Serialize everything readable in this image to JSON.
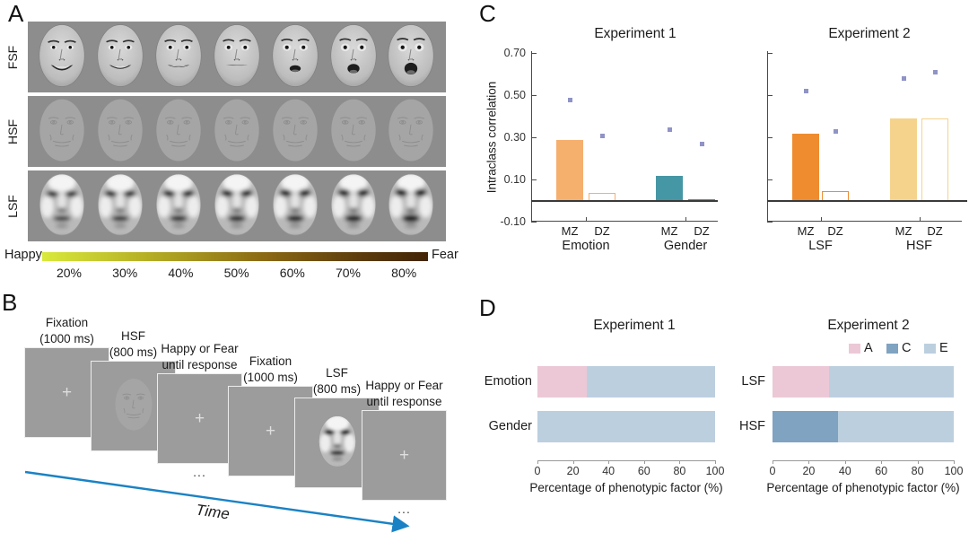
{
  "panelA": {
    "label": "A",
    "row_labels": [
      "FSF",
      "HSF",
      "LSF"
    ],
    "faces_per_row": 7,
    "colorbar": {
      "left_label": "Happy",
      "right_label": "Fear",
      "tick_labels": [
        "20%",
        "30%",
        "40%",
        "50%",
        "60%",
        "70%",
        "80%"
      ],
      "gradient_start": "#d9e93c",
      "gradient_end": "#422406"
    }
  },
  "panelB": {
    "label": "B",
    "time_label": "Time",
    "arrow_color": "#1a82c4",
    "ellipsis": "...",
    "frames": [
      {
        "label_line1": "Fixation",
        "label_line2": "(1000 ms)",
        "content": "fixation-cross",
        "ellipsis_below": false
      },
      {
        "label_line1": "HSF",
        "label_line2": "(800 ms)",
        "content": "hsf-face",
        "ellipsis_below": false
      },
      {
        "label_line1": "Happy or Fear",
        "label_line2": "until response",
        "content": "fixation-cross",
        "ellipsis_below": true
      },
      {
        "label_line1": "Fixation",
        "label_line2": "(1000 ms)",
        "content": "fixation-cross",
        "ellipsis_below": false
      },
      {
        "label_line1": "LSF",
        "label_line2": "(800 ms)",
        "content": "lsf-face",
        "ellipsis_below": false
      },
      {
        "label_line1": "Happy or Fear",
        "label_line2": "until response",
        "content": "fixation-cross",
        "ellipsis_below": true
      }
    ]
  },
  "chart_data": [
    {
      "panel_label": "C",
      "type": "bar",
      "ylabel": "Intraclass correlation",
      "ylim": [
        -0.1,
        0.72
      ],
      "ytick_labels": [
        "0.70",
        "0.50",
        "0.30",
        "0.10",
        "-0.10"
      ],
      "ytick_values": [
        0.7,
        0.5,
        0.3,
        0.1,
        -0.1
      ],
      "point_color": "#8f93c6",
      "charts": [
        {
          "title": "Experiment 1",
          "groups": [
            {
              "label": "Emotion",
              "color": "#f5b06e",
              "bars": [
                {
                  "x_label": "MZ",
                  "value": 0.29,
                  "style": "filled"
                },
                {
                  "x_label": "DZ",
                  "value": 0.04,
                  "style": "outline"
                }
              ],
              "points": [
                {
                  "x_label": "MZ",
                  "value": 0.48
                },
                {
                  "x_label": "DZ",
                  "value": 0.31
                }
              ]
            },
            {
              "label": "Gender",
              "color": "#4697a5",
              "bars": [
                {
                  "x_label": "MZ",
                  "value": 0.12,
                  "style": "filled"
                },
                {
                  "x_label": "DZ",
                  "value": 0.005,
                  "style": "filled"
                }
              ],
              "points": [
                {
                  "x_label": "MZ",
                  "value": 0.34
                },
                {
                  "x_label": "DZ",
                  "value": 0.27
                }
              ]
            }
          ]
        },
        {
          "title": "Experiment 2",
          "groups": [
            {
              "label": "LSF",
              "color": "#ef8c2f",
              "bars": [
                {
                  "x_label": "MZ",
                  "value": 0.32,
                  "style": "filled"
                },
                {
                  "x_label": "DZ",
                  "value": 0.045,
                  "style": "outline"
                }
              ],
              "points": [
                {
                  "x_label": "MZ",
                  "value": 0.52
                },
                {
                  "x_label": "DZ",
                  "value": 0.33
                }
              ]
            },
            {
              "label": "HSF",
              "color": "#f5d38d",
              "bars": [
                {
                  "x_label": "MZ",
                  "value": 0.39,
                  "style": "filled"
                },
                {
                  "x_label": "DZ",
                  "value": 0.39,
                  "style": "outline"
                }
              ],
              "points": [
                {
                  "x_label": "MZ",
                  "value": 0.58
                },
                {
                  "x_label": "DZ",
                  "value": 0.61
                }
              ]
            }
          ]
        }
      ]
    },
    {
      "panel_label": "D",
      "type": "stacked-bar-horizontal",
      "xlabel": "Percentage of phenotypic factor (%)",
      "xlim": [
        0,
        100
      ],
      "xticks": [
        0,
        20,
        40,
        60,
        80,
        100
      ],
      "legend": [
        {
          "label": "A",
          "color": "#ecc8d6"
        },
        {
          "label": "C",
          "color": "#7fa3c1"
        },
        {
          "label": "E",
          "color": "#bccfdf"
        }
      ],
      "charts": [
        {
          "title": "Experiment 1",
          "rows": [
            {
              "label": "Emotion",
              "segments": [
                {
                  "factor": "A",
                  "value": 28
                },
                {
                  "factor": "E",
                  "value": 72
                }
              ]
            },
            {
              "label": "Gender",
              "segments": [
                {
                  "factor": "E",
                  "value": 100
                }
              ]
            }
          ]
        },
        {
          "title": "Experiment 2",
          "rows": [
            {
              "label": "LSF",
              "segments": [
                {
                  "factor": "A",
                  "value": 31
                },
                {
                  "factor": "E",
                  "value": 69
                }
              ]
            },
            {
              "label": "HSF",
              "segments": [
                {
                  "factor": "C",
                  "value": 36
                },
                {
                  "factor": "E",
                  "value": 64
                }
              ]
            }
          ]
        }
      ]
    }
  ]
}
